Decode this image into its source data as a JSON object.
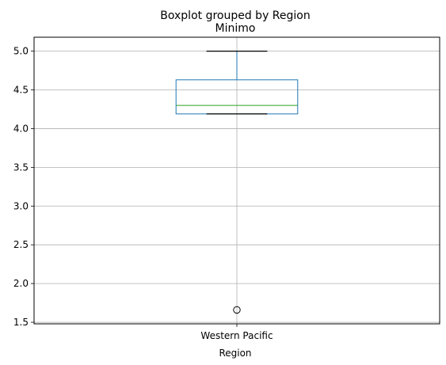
{
  "chart_data": {
    "type": "boxplot",
    "suptitle": "Boxplot grouped by Region",
    "title": "Minimo",
    "xlabel": "Region",
    "ylabel": "",
    "categories": [
      "Western Pacific"
    ],
    "boxes": [
      {
        "category": "Western Pacific",
        "whisker_low": 4.19,
        "q1": 4.19,
        "median": 4.3,
        "q3": 4.63,
        "whisker_high": 5.0,
        "outliers": [
          1.66
        ]
      }
    ],
    "ylim": [
      1.48,
      5.18
    ],
    "yticks": [
      1.5,
      2.0,
      2.5,
      3.0,
      3.5,
      4.0,
      4.5,
      5.0
    ],
    "ytick_labels": [
      "1.5",
      "2.0",
      "2.5",
      "3.0",
      "3.5",
      "4.0",
      "4.5",
      "5.0"
    ],
    "grid": true,
    "colors": {
      "box": "#1f77b4",
      "median": "#2ca02c",
      "whisker": "#1f77b4",
      "cap": "#000000",
      "grid": "#b0b0b0"
    }
  }
}
